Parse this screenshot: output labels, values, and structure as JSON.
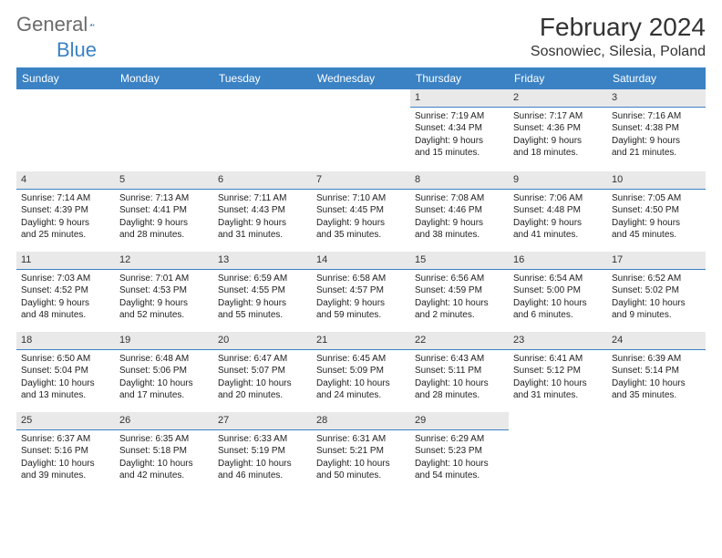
{
  "logo": {
    "part1": "General",
    "part2": "Blue"
  },
  "title": "February 2024",
  "location": "Sosnowiec, Silesia, Poland",
  "colors": {
    "header_bg": "#3a82c4",
    "header_text": "#ffffff",
    "daynum_bg": "#e9e9e9",
    "daynum_border": "#3a82c4",
    "text": "#222222",
    "logo_gray": "#6b6b6b"
  },
  "day_labels": [
    "Sunday",
    "Monday",
    "Tuesday",
    "Wednesday",
    "Thursday",
    "Friday",
    "Saturday"
  ],
  "weeks": [
    [
      null,
      null,
      null,
      null,
      {
        "n": "1",
        "sr": "Sunrise: 7:19 AM",
        "ss": "Sunset: 4:34 PM",
        "d1": "Daylight: 9 hours",
        "d2": "and 15 minutes."
      },
      {
        "n": "2",
        "sr": "Sunrise: 7:17 AM",
        "ss": "Sunset: 4:36 PM",
        "d1": "Daylight: 9 hours",
        "d2": "and 18 minutes."
      },
      {
        "n": "3",
        "sr": "Sunrise: 7:16 AM",
        "ss": "Sunset: 4:38 PM",
        "d1": "Daylight: 9 hours",
        "d2": "and 21 minutes."
      }
    ],
    [
      {
        "n": "4",
        "sr": "Sunrise: 7:14 AM",
        "ss": "Sunset: 4:39 PM",
        "d1": "Daylight: 9 hours",
        "d2": "and 25 minutes."
      },
      {
        "n": "5",
        "sr": "Sunrise: 7:13 AM",
        "ss": "Sunset: 4:41 PM",
        "d1": "Daylight: 9 hours",
        "d2": "and 28 minutes."
      },
      {
        "n": "6",
        "sr": "Sunrise: 7:11 AM",
        "ss": "Sunset: 4:43 PM",
        "d1": "Daylight: 9 hours",
        "d2": "and 31 minutes."
      },
      {
        "n": "7",
        "sr": "Sunrise: 7:10 AM",
        "ss": "Sunset: 4:45 PM",
        "d1": "Daylight: 9 hours",
        "d2": "and 35 minutes."
      },
      {
        "n": "8",
        "sr": "Sunrise: 7:08 AM",
        "ss": "Sunset: 4:46 PM",
        "d1": "Daylight: 9 hours",
        "d2": "and 38 minutes."
      },
      {
        "n": "9",
        "sr": "Sunrise: 7:06 AM",
        "ss": "Sunset: 4:48 PM",
        "d1": "Daylight: 9 hours",
        "d2": "and 41 minutes."
      },
      {
        "n": "10",
        "sr": "Sunrise: 7:05 AM",
        "ss": "Sunset: 4:50 PM",
        "d1": "Daylight: 9 hours",
        "d2": "and 45 minutes."
      }
    ],
    [
      {
        "n": "11",
        "sr": "Sunrise: 7:03 AM",
        "ss": "Sunset: 4:52 PM",
        "d1": "Daylight: 9 hours",
        "d2": "and 48 minutes."
      },
      {
        "n": "12",
        "sr": "Sunrise: 7:01 AM",
        "ss": "Sunset: 4:53 PM",
        "d1": "Daylight: 9 hours",
        "d2": "and 52 minutes."
      },
      {
        "n": "13",
        "sr": "Sunrise: 6:59 AM",
        "ss": "Sunset: 4:55 PM",
        "d1": "Daylight: 9 hours",
        "d2": "and 55 minutes."
      },
      {
        "n": "14",
        "sr": "Sunrise: 6:58 AM",
        "ss": "Sunset: 4:57 PM",
        "d1": "Daylight: 9 hours",
        "d2": "and 59 minutes."
      },
      {
        "n": "15",
        "sr": "Sunrise: 6:56 AM",
        "ss": "Sunset: 4:59 PM",
        "d1": "Daylight: 10 hours",
        "d2": "and 2 minutes."
      },
      {
        "n": "16",
        "sr": "Sunrise: 6:54 AM",
        "ss": "Sunset: 5:00 PM",
        "d1": "Daylight: 10 hours",
        "d2": "and 6 minutes."
      },
      {
        "n": "17",
        "sr": "Sunrise: 6:52 AM",
        "ss": "Sunset: 5:02 PM",
        "d1": "Daylight: 10 hours",
        "d2": "and 9 minutes."
      }
    ],
    [
      {
        "n": "18",
        "sr": "Sunrise: 6:50 AM",
        "ss": "Sunset: 5:04 PM",
        "d1": "Daylight: 10 hours",
        "d2": "and 13 minutes."
      },
      {
        "n": "19",
        "sr": "Sunrise: 6:48 AM",
        "ss": "Sunset: 5:06 PM",
        "d1": "Daylight: 10 hours",
        "d2": "and 17 minutes."
      },
      {
        "n": "20",
        "sr": "Sunrise: 6:47 AM",
        "ss": "Sunset: 5:07 PM",
        "d1": "Daylight: 10 hours",
        "d2": "and 20 minutes."
      },
      {
        "n": "21",
        "sr": "Sunrise: 6:45 AM",
        "ss": "Sunset: 5:09 PM",
        "d1": "Daylight: 10 hours",
        "d2": "and 24 minutes."
      },
      {
        "n": "22",
        "sr": "Sunrise: 6:43 AM",
        "ss": "Sunset: 5:11 PM",
        "d1": "Daylight: 10 hours",
        "d2": "and 28 minutes."
      },
      {
        "n": "23",
        "sr": "Sunrise: 6:41 AM",
        "ss": "Sunset: 5:12 PM",
        "d1": "Daylight: 10 hours",
        "d2": "and 31 minutes."
      },
      {
        "n": "24",
        "sr": "Sunrise: 6:39 AM",
        "ss": "Sunset: 5:14 PM",
        "d1": "Daylight: 10 hours",
        "d2": "and 35 minutes."
      }
    ],
    [
      {
        "n": "25",
        "sr": "Sunrise: 6:37 AM",
        "ss": "Sunset: 5:16 PM",
        "d1": "Daylight: 10 hours",
        "d2": "and 39 minutes."
      },
      {
        "n": "26",
        "sr": "Sunrise: 6:35 AM",
        "ss": "Sunset: 5:18 PM",
        "d1": "Daylight: 10 hours",
        "d2": "and 42 minutes."
      },
      {
        "n": "27",
        "sr": "Sunrise: 6:33 AM",
        "ss": "Sunset: 5:19 PM",
        "d1": "Daylight: 10 hours",
        "d2": "and 46 minutes."
      },
      {
        "n": "28",
        "sr": "Sunrise: 6:31 AM",
        "ss": "Sunset: 5:21 PM",
        "d1": "Daylight: 10 hours",
        "d2": "and 50 minutes."
      },
      {
        "n": "29",
        "sr": "Sunrise: 6:29 AM",
        "ss": "Sunset: 5:23 PM",
        "d1": "Daylight: 10 hours",
        "d2": "and 54 minutes."
      },
      null,
      null
    ]
  ]
}
